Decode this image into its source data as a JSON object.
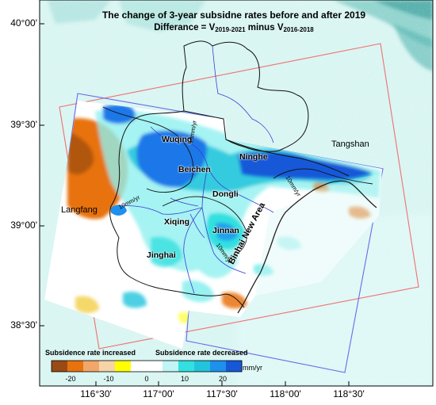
{
  "title": "The change of 3-year subsidne rates before and after 2019",
  "subtitle": {
    "prefix": "Differance = ",
    "v1": "V",
    "v1_sub": "2019-2021",
    "mid": " minus ",
    "v2": "V",
    "v2_sub": "2016-2018"
  },
  "axes": {
    "lat_ticks": [
      "40°00'",
      "39°30'",
      "39°00'",
      "38°30'"
    ],
    "lon_ticks": [
      "116°30'",
      "117°00'",
      "117°30'",
      "118°00'",
      "118°30'"
    ]
  },
  "places": {
    "wuqing": "Wuqing",
    "beichen": "Beichen",
    "ninghe": "Ninghe",
    "tangshan": "Tangshan",
    "dongli": "Dongli",
    "langfang": "Langfang",
    "xiqing": "Xiqing",
    "jinnan": "Jinnan",
    "jinghai": "Jinghai",
    "binhai": "Binhai New Area"
  },
  "contours": [
    "10mm/yr",
    "10mm/yr",
    "10mm/yr",
    "10mm/yr"
  ],
  "colorbar": {
    "left_title": "Subsidence rate increased",
    "right_title": "Subsidence rate decreased",
    "ticks": [
      "-20",
      "-10",
      "0",
      "10",
      "20"
    ],
    "unit": "mm/yr",
    "colors": [
      "#9a4a14",
      "#e8720c",
      "#f2a66a",
      "#f7d4a8",
      "#ffff00",
      "#ffffff",
      "#ffffff",
      "#bff5f5",
      "#33e0e0",
      "#22c4dc",
      "#1e90ee",
      "#1658d8"
    ]
  }
}
